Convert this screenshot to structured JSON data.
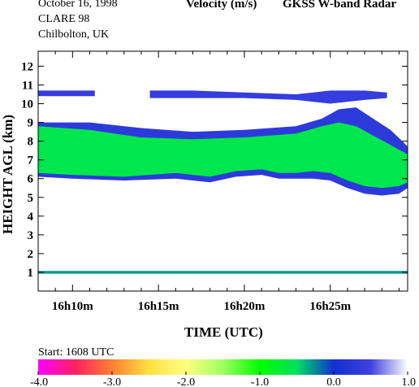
{
  "header": {
    "date": "October  16, 1998",
    "campaign": "CLARE 98",
    "location": "Chilbolton, UK",
    "title_var": "Velocity (m/s)",
    "title_instrument": "GKSS  W-band Radar"
  },
  "footer": {
    "start": "Start: 1608 UTC"
  },
  "chart_data": {
    "type": "heatmap",
    "title": "Velocity (m/s)",
    "xlabel": "TIME (UTC)",
    "ylabel": "HEIGHT AGL (km)",
    "x_unit": "minutes after 16h00",
    "xlim": [
      8,
      29.5
    ],
    "ylim": [
      0,
      12.8
    ],
    "x_ticks": [
      {
        "value": 10,
        "label": "16h10m"
      },
      {
        "value": 15,
        "label": "16h15m"
      },
      {
        "value": 20,
        "label": "16h20m"
      },
      {
        "value": 25,
        "label": "16h25m"
      }
    ],
    "y_ticks": [
      {
        "value": 1,
        "label": "1"
      },
      {
        "value": 2,
        "label": "2"
      },
      {
        "value": 3,
        "label": "3"
      },
      {
        "value": 4,
        "label": "4"
      },
      {
        "value": 5,
        "label": "5"
      },
      {
        "value": 6,
        "label": "6"
      },
      {
        "value": 7,
        "label": "7"
      },
      {
        "value": 8,
        "label": "8"
      },
      {
        "value": 9,
        "label": "9"
      },
      {
        "value": 10,
        "label": "10"
      },
      {
        "value": 11,
        "label": "11"
      },
      {
        "value": 12,
        "label": "12"
      }
    ],
    "colorbar": {
      "range": [
        -4.0,
        1.0
      ],
      "ticks": [
        "-4.0",
        "-3.0",
        "-2.0",
        "-1.0",
        "0.0",
        "1.0"
      ],
      "tick_values": [
        -4,
        -3,
        -2,
        -1,
        0,
        1
      ],
      "colors": [
        "#ff00ff",
        "#ff2060",
        "#ff8030",
        "#ffe040",
        "#ffff80",
        "#a0ff60",
        "#00ff00",
        "#00e060",
        "#1030d0",
        "#4040e0",
        "#ffffff"
      ]
    },
    "layers": [
      {
        "name": "main cloud outer",
        "velocity": 0.3,
        "top": [
          [
            8,
            9.0
          ],
          [
            11,
            9.0
          ],
          [
            14,
            8.7
          ],
          [
            17,
            8.5
          ],
          [
            20,
            8.6
          ],
          [
            23,
            8.8
          ],
          [
            24.5,
            9.2
          ],
          [
            25.5,
            9.7
          ],
          [
            26.5,
            9.8
          ],
          [
            27.5,
            9.2
          ],
          [
            28.5,
            8.6
          ],
          [
            29.3,
            7.9
          ],
          [
            29.5,
            7.7
          ]
        ],
        "bottom": [
          [
            8,
            6.1
          ],
          [
            10,
            6.0
          ],
          [
            13,
            5.9
          ],
          [
            16,
            6.0
          ],
          [
            18,
            5.8
          ],
          [
            19.5,
            6.1
          ],
          [
            21,
            6.2
          ],
          [
            22,
            6.0
          ],
          [
            23,
            6.0
          ],
          [
            24,
            6.0
          ],
          [
            25,
            5.9
          ],
          [
            26,
            5.5
          ],
          [
            27,
            5.2
          ],
          [
            28,
            5.1
          ],
          [
            29,
            5.2
          ],
          [
            29.5,
            5.5
          ]
        ]
      },
      {
        "name": "main cloud core",
        "velocity": -0.6,
        "top": [
          [
            8,
            8.8
          ],
          [
            11,
            8.6
          ],
          [
            14,
            8.2
          ],
          [
            17,
            8.1
          ],
          [
            20,
            8.2
          ],
          [
            23,
            8.4
          ],
          [
            24.5,
            8.8
          ],
          [
            25.5,
            9.0
          ],
          [
            26.5,
            8.8
          ],
          [
            27.5,
            8.3
          ],
          [
            28.5,
            7.8
          ],
          [
            29.5,
            7.3
          ]
        ],
        "bottom": [
          [
            8,
            6.3
          ],
          [
            10,
            6.2
          ],
          [
            13,
            6.1
          ],
          [
            16,
            6.3
          ],
          [
            18,
            6.1
          ],
          [
            19.5,
            6.4
          ],
          [
            21,
            6.5
          ],
          [
            22,
            6.3
          ],
          [
            23,
            6.3
          ],
          [
            24,
            6.4
          ],
          [
            25,
            6.3
          ],
          [
            26,
            5.9
          ],
          [
            27,
            5.6
          ],
          [
            28,
            5.5
          ],
          [
            29,
            5.6
          ],
          [
            29.5,
            5.8
          ]
        ]
      },
      {
        "name": "upper layer",
        "velocity": 0.4,
        "top": [
          [
            14.5,
            10.7
          ],
          [
            17,
            10.7
          ],
          [
            20,
            10.6
          ],
          [
            23,
            10.5
          ],
          [
            25,
            10.7
          ],
          [
            27,
            10.7
          ],
          [
            28.3,
            10.6
          ]
        ],
        "bottom": [
          [
            14.5,
            10.3
          ],
          [
            17,
            10.3
          ],
          [
            20,
            10.3
          ],
          [
            23,
            10.2
          ],
          [
            25,
            10.0
          ],
          [
            27,
            10.2
          ],
          [
            28.3,
            10.3
          ]
        ]
      },
      {
        "name": "upper layer left",
        "velocity": 0.4,
        "top": [
          [
            8,
            10.7
          ],
          [
            11.3,
            10.7
          ]
        ],
        "bottom": [
          [
            8,
            10.4
          ],
          [
            11.3,
            10.4
          ]
        ]
      },
      {
        "name": "surface layer",
        "velocity": -0.3,
        "top": [
          [
            8,
            1.07
          ],
          [
            29.5,
            1.07
          ]
        ],
        "bottom": [
          [
            8,
            0.93
          ],
          [
            29.5,
            0.93
          ]
        ]
      }
    ]
  }
}
